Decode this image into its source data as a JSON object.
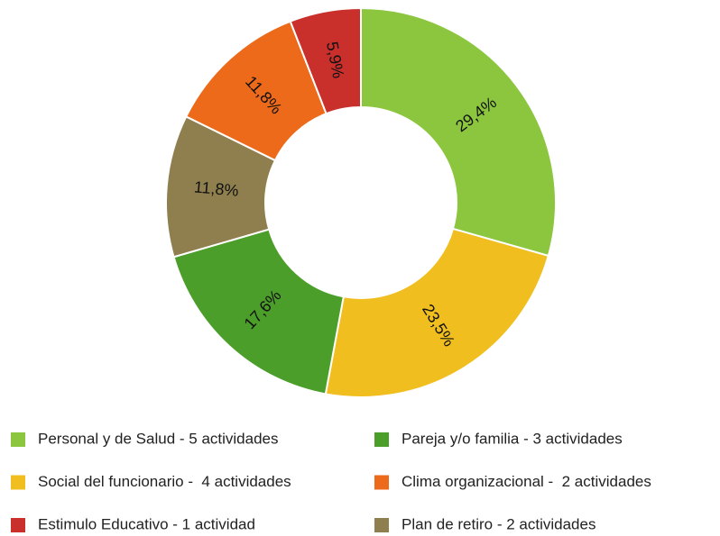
{
  "chart_data": {
    "type": "donut",
    "categories": [
      "Personal y de Salud - 5 actividades",
      "Social del funcionario -  4 actividades",
      "Pareja y/o familia - 3 actividades",
      "Plan de retiro - 2 actividades",
      "Clima organizacional -  2 actividades",
      "Estimulo Educativo - 1 actividad"
    ],
    "values": [
      29.4,
      23.5,
      17.6,
      11.8,
      11.8,
      5.9
    ],
    "value_labels": [
      "29,4%",
      "23,5%",
      "17,6%",
      "11,8%",
      "11,8%",
      "5,9%"
    ],
    "colors": [
      "#8cc63f",
      "#f0be1e",
      "#4c9e2a",
      "#8f7f4e",
      "#ec6a1a",
      "#c9302c"
    ],
    "legend": "bottom"
  }
}
